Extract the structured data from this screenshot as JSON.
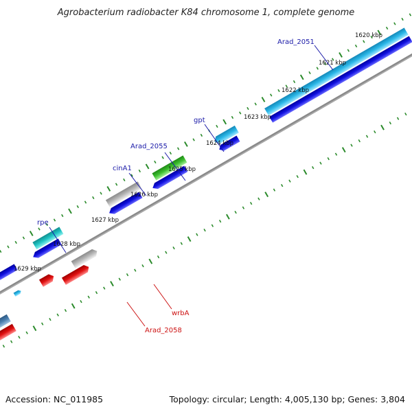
{
  "title": "Agrobacterium radiobacter K84 chromosome 1, complete genome",
  "footer": {
    "accession": "Accession: NC_011985",
    "summary": "Topology: circular; Length: 4,005,130 bp; Genes: 3,804"
  },
  "ticks": [
    {
      "label": "1620 kbp"
    },
    {
      "label": "1621 kbp"
    },
    {
      "label": "1622 kbp"
    },
    {
      "label": "1623 kbp"
    },
    {
      "label": "1624 kbp"
    },
    {
      "label": "1625 kbp"
    },
    {
      "label": "1626 kbp"
    },
    {
      "label": "1627 kbp"
    },
    {
      "label": "1628 kbp"
    },
    {
      "label": "1629 kbp"
    }
  ],
  "gene_labels": [
    {
      "name": "Arad_2051",
      "color": "#1a1aa8"
    },
    {
      "name": "gpt",
      "color": "#1a1aa8"
    },
    {
      "name": "Arad_2055",
      "color": "#1a1aa8"
    },
    {
      "name": "cinA1",
      "color": "#1a1aa8"
    },
    {
      "name": "rpe",
      "color": "#1a1aa8"
    },
    {
      "name": "wrbA",
      "color": "#cc1111"
    },
    {
      "name": "Arad_2058",
      "color": "#cc1111"
    }
  ],
  "colors": {
    "backbone": "#8a8a8a",
    "tick": "#2a8a2a",
    "cds_forward": "#1010e0",
    "gene_cyan": "#2bb8e8",
    "gene_teal": "#1fc4c4",
    "gene_green": "#3cbf2e",
    "gene_grey": "#b8b8b8",
    "gene_red": "#e01010",
    "gene_steel": "#4a7fb0"
  }
}
